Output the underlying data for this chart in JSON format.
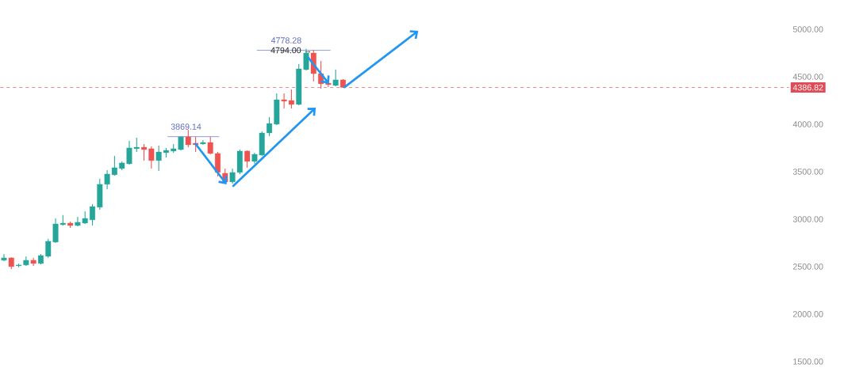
{
  "chart_data": {
    "type": "candlestick",
    "categories": [
      null,
      null,
      null,
      null,
      null,
      null,
      null,
      null,
      null,
      null,
      null,
      null,
      null,
      null,
      null,
      null,
      null,
      null,
      null,
      null,
      null,
      null,
      null,
      null,
      null,
      null,
      null,
      null,
      null,
      null,
      null,
      null,
      null,
      null,
      null,
      null,
      null,
      null,
      null,
      null,
      null,
      null,
      null,
      null,
      null,
      null,
      null,
      null,
      null,
      null,
      null,
      null,
      null,
      null,
      null,
      null,
      null,
      null,
      null,
      null,
      null,
      null,
      null,
      null,
      null,
      null,
      null,
      null,
      null,
      null,
      null,
      null,
      null,
      null,
      null,
      null,
      null,
      null,
      null,
      null,
      null,
      null,
      null,
      null,
      null,
      null,
      null,
      null,
      null,
      null,
      null,
      null,
      null,
      null,
      null,
      null,
      null,
      null,
      null,
      null,
      null,
      null,
      null,
      null,
      null,
      null,
      null
    ],
    "ohlc": [
      [
        2567,
        2633,
        2558,
        2592
      ],
      [
        2592,
        2600,
        2475,
        2500
      ],
      [
        2508,
        2533,
        2492,
        2517
      ],
      [
        2517,
        2608,
        2508,
        2567
      ],
      [
        2567,
        2592,
        2508,
        2533
      ],
      [
        2533,
        2633,
        2525,
        2617
      ],
      [
        2608,
        2792,
        2592,
        2767
      ],
      [
        2758,
        3008,
        2750,
        2950
      ],
      [
        2942,
        3042,
        2933,
        2958
      ],
      [
        2958,
        2975,
        2908,
        2933
      ],
      [
        2933,
        3025,
        2925,
        2967
      ],
      [
        2958,
        3083,
        2950,
        3008
      ],
      [
        2992,
        3158,
        2933,
        3133
      ],
      [
        3125,
        3425,
        3100,
        3367
      ],
      [
        3367,
        3517,
        3317,
        3475
      ],
      [
        3467,
        3667,
        3458,
        3542
      ],
      [
        3533,
        3608,
        3517,
        3592
      ],
      [
        3583,
        3825,
        3575,
        3750
      ],
      [
        3742,
        3858,
        3708,
        3758
      ],
      [
        3758,
        3792,
        3617,
        3733
      ],
      [
        3742,
        3767,
        3533,
        3617
      ],
      [
        3617,
        3775,
        3508,
        3708
      ],
      [
        3700,
        3750,
        3650,
        3725
      ],
      [
        3717,
        3792,
        3700,
        3742
      ],
      [
        3733,
        3867,
        3725,
        3867
      ],
      [
        3867,
        3940,
        3758,
        3783
      ],
      [
        3800,
        3867,
        3708,
        3783
      ],
      [
        3792,
        3833,
        3783,
        3808
      ],
      [
        3808,
        3867,
        3683,
        3692
      ],
      [
        3692,
        3708,
        3450,
        3492
      ],
      [
        3483,
        3533,
        3375,
        3392
      ],
      [
        3392,
        3533,
        3375,
        3492
      ],
      [
        3492,
        3733,
        3475,
        3717
      ],
      [
        3717,
        3725,
        3542,
        3608
      ],
      [
        3608,
        3700,
        3583,
        3683
      ],
      [
        3675,
        3925,
        3667,
        3908
      ],
      [
        3908,
        4075,
        3875,
        4008
      ],
      [
        4000,
        4325,
        3992,
        4258
      ],
      [
        4258,
        4325,
        4167,
        4242
      ],
      [
        4250,
        4367,
        4167,
        4208
      ],
      [
        4208,
        4633,
        4200,
        4583
      ],
      [
        4575,
        4794,
        4567,
        4750
      ],
      [
        4750,
        4783,
        4450,
        4533
      ],
      [
        4533,
        4667,
        4375,
        4425
      ],
      [
        4433,
        4450,
        4392,
        4417
      ],
      [
        4408,
        4575,
        4400,
        4467
      ],
      [
        4467,
        4475,
        4383,
        4386.82
      ],
      null,
      null,
      null,
      null,
      null,
      null,
      null,
      null,
      null,
      null,
      null,
      null,
      null,
      null,
      null,
      null,
      null,
      null,
      null,
      null,
      null,
      null,
      null,
      null,
      null,
      null,
      null,
      null,
      null,
      null,
      null,
      null,
      null,
      null,
      null,
      null,
      null,
      null,
      null,
      null,
      null,
      null,
      null,
      null,
      null,
      null,
      null,
      null,
      null,
      null,
      null,
      null,
      null,
      null,
      null,
      null,
      null,
      null,
      null,
      null
    ],
    "ylim": [
      1500,
      5000
    ],
    "yticks": [
      {
        "value": 1500,
        "label": "1500.00"
      },
      {
        "value": 2000,
        "label": "2000.00"
      },
      {
        "value": 2500,
        "label": "2500.00"
      },
      {
        "value": 3000,
        "label": "3000.00"
      },
      {
        "value": 3500,
        "label": "3500.00"
      },
      {
        "value": 4000,
        "label": "4000.00"
      },
      {
        "value": 4500,
        "label": "4500.00"
      },
      {
        "value": 5000,
        "label": "5000.00"
      }
    ],
    "tick_labels": "y",
    "ref_lines": [
      {
        "axis": "y",
        "value": 4386.82,
        "label": "4386.82",
        "color": "#e04b55",
        "line_style": "dashed"
      },
      {
        "axis": "y",
        "value": 3869.14,
        "label": "3869.14",
        "color": "#5b6bbf",
        "line_style": "solid"
      },
      {
        "axis": "y",
        "value": 4778.28,
        "label": "4778.28",
        "color": "#5b6bbf",
        "line_style": "solid"
      }
    ],
    "annotations": [
      "4794.00 →"
    ]
  }
}
